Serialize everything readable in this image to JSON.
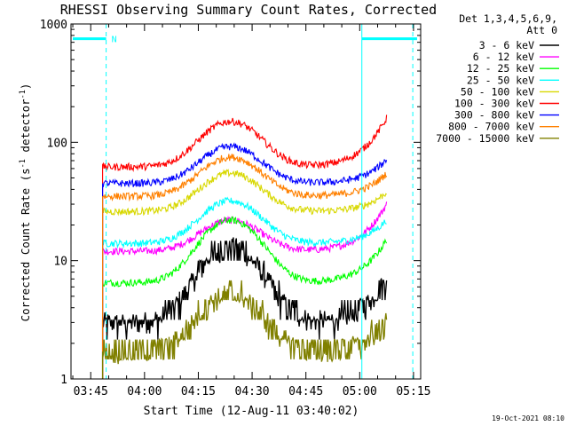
{
  "chart_data": {
    "type": "line",
    "title": "RHESSI Observing Summary Count Rates, Corrected",
    "xlabel": "Start Time (12-Aug-11 03:40:02)",
    "ylabel_main": "Corrected Count Rate (s",
    "ylabel_sup1": "-1",
    "ylabel_mid": " detector",
    "ylabel_sup2": "-1",
    "ylabel_end": ")",
    "yscale": "log",
    "ylim": [
      1,
      1000
    ],
    "xlim_minutes": [
      -0.5,
      97
    ],
    "x_tick_labels": [
      "03:45",
      "04:00",
      "04:15",
      "04:30",
      "04:45",
      "05:00",
      "05:15"
    ],
    "x_tick_minutes": [
      5,
      20,
      35,
      50,
      65,
      80,
      95
    ],
    "y_tick_labels": [
      "1",
      "10",
      "100",
      "1000"
    ],
    "y_tick_values": [
      1,
      10,
      100,
      1000
    ],
    "legend_header": [
      "Det 1,3,4,5,6,9,",
      "Att 0"
    ],
    "series": [
      {
        "name": "3 - 6 keV",
        "color": "#000000",
        "base": 3.0,
        "peak": 13,
        "end": 7
      },
      {
        "name": "6 - 12 keV",
        "color": "#ff00ff",
        "base": 12,
        "peak": 22,
        "end": 30
      },
      {
        "name": "12 - 25 keV",
        "color": "#00ff00",
        "base": 6.5,
        "peak": 22,
        "end": 15
      },
      {
        "name": "25 - 50 keV",
        "color": "#00ffff",
        "base": 14,
        "peak": 32,
        "end": 22
      },
      {
        "name": "50 - 100 keV",
        "color": "#d8d800",
        "base": 26,
        "peak": 55,
        "end": 38
      },
      {
        "name": "100 - 300 keV",
        "color": "#ff0000",
        "base": 62,
        "peak": 150,
        "end": 160
      },
      {
        "name": "300 - 800 keV",
        "color": "#0000ff",
        "base": 45,
        "peak": 92,
        "end": 72
      },
      {
        "name": "800 - 7000 keV",
        "color": "#ff8000",
        "base": 35,
        "peak": 75,
        "end": 55
      },
      {
        "name": "7000 - 15000 keV",
        "color": "#808000",
        "base": 1.7,
        "peak": 5.2,
        "end": 3
      }
    ],
    "data_start_minute": 8.3,
    "data_end_minute": 87.5,
    "peak_minute": 44,
    "annotations": {
      "night_label": "N",
      "night_intervals_minutes": [
        [
          0,
          9.3
        ],
        [
          80.6,
          96
        ]
      ],
      "night_level": 750,
      "night_boundaries_minutes": [
        9.3,
        80.6,
        94.8
      ]
    },
    "footer": "19-Oct-2021 08:10"
  }
}
